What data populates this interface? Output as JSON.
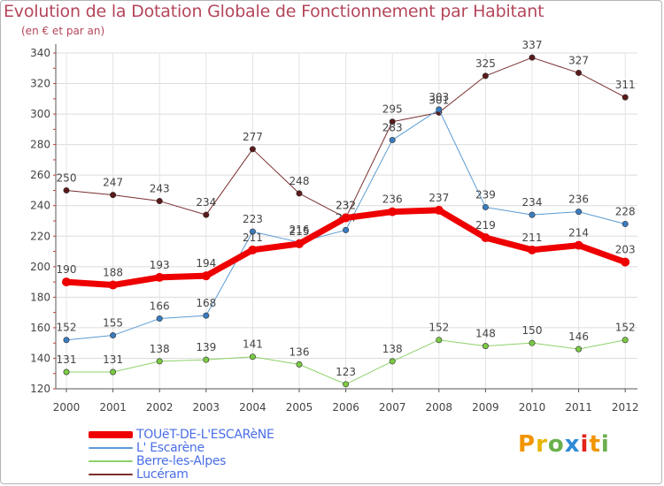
{
  "title": "Evolution de la Dotation Globale de Fonctionnement par Habitant",
  "subtitle": "(en € et par an)",
  "logo": {
    "text": "Proxiti",
    "letters": [
      {
        "ch": "P",
        "color": "#f29400"
      },
      {
        "ch": "r",
        "color": "#e8b400"
      },
      {
        "ch": "o",
        "color": "#6ab04c"
      },
      {
        "ch": "x",
        "color": "#2e8bd6"
      },
      {
        "ch": "i",
        "color": "#e2231a"
      },
      {
        "ch": "t",
        "color": "#f29400"
      },
      {
        "ch": "i",
        "color": "#6ab04c"
      }
    ]
  },
  "chart_data": {
    "type": "line",
    "x": [
      "2000",
      "2001",
      "2002",
      "2003",
      "2004",
      "2005",
      "2006",
      "2007",
      "2008",
      "2009",
      "2010",
      "2011",
      "2012"
    ],
    "ylim": [
      120,
      340
    ],
    "yticks": [
      120,
      140,
      160,
      180,
      200,
      220,
      240,
      260,
      280,
      300,
      320,
      340
    ],
    "grid": true,
    "legend_position": "bottom-left",
    "series": [
      {
        "name": "Lucéram",
        "color": "#7a2e2e",
        "width": 1,
        "marker": "#5a1a1a",
        "values": [
          250,
          247,
          243,
          234,
          277,
          248,
          232,
          295,
          301,
          325,
          337,
          327,
          311
        ],
        "labels": [
          "250",
          "247",
          "243",
          "234",
          "277",
          "248",
          "232",
          "295",
          "301",
          "325",
          "337",
          "327",
          "311"
        ]
      },
      {
        "name": "L' Escarène",
        "color": "#5b9bd5",
        "width": 1,
        "marker": "#3a7cc0",
        "values": [
          152,
          155,
          166,
          168,
          223,
          216,
          224,
          283,
          303,
          239,
          234,
          236,
          228
        ],
        "labels": [
          "152",
          "155",
          "166",
          "168",
          "223",
          "216",
          "224",
          "283",
          "303",
          "239",
          "234",
          "236",
          "228"
        ]
      },
      {
        "name": "Berre-les-Alpes",
        "color": "#8fd16a",
        "width": 1,
        "marker": "#7ac943",
        "values": [
          131,
          131,
          138,
          139,
          141,
          136,
          123,
          138,
          152,
          148,
          150,
          146,
          152
        ],
        "labels": [
          "131",
          "131",
          "138",
          "139",
          "141",
          "136",
          "123",
          "138",
          "152",
          "148",
          "150",
          "146",
          "152"
        ]
      },
      {
        "name": "TOUëT-DE-L'ESCARèNE",
        "color": "#ee0000",
        "width": 7,
        "marker": "#ee0000",
        "values": [
          190,
          188,
          193,
          194,
          211,
          215,
          232,
          236,
          237,
          219,
          211,
          214,
          203
        ],
        "labels": [
          "190",
          "188",
          "193",
          "194",
          "211",
          "215",
          "232",
          "236",
          "237",
          "219",
          "211",
          "214",
          "203"
        ]
      }
    ],
    "legend": [
      "TOUëT-DE-L'ESCARèNE",
      "L' Escarène",
      "Berre-les-Alpes",
      "Lucéram"
    ]
  }
}
